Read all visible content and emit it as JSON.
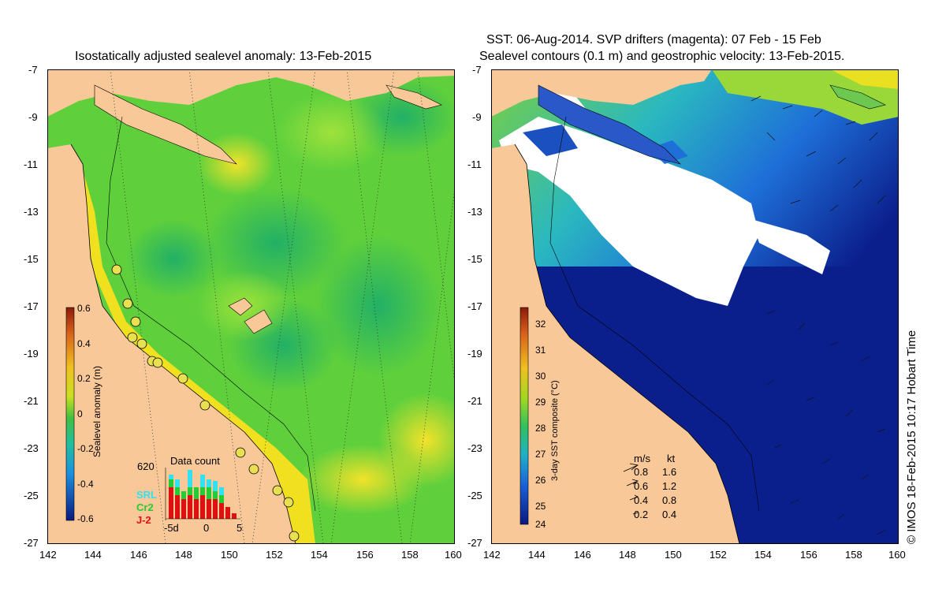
{
  "left_map": {
    "title": "Isostatically adjusted sealevel anomaly: 13-Feb-2015",
    "colorbar_label": "Sealevel anomaly (m)",
    "colorbar_ticks": [
      "0.6",
      "0.4",
      "0.2",
      "0",
      "-0.2",
      "-0.4",
      "-0.6"
    ],
    "data_count": {
      "title": "Data count",
      "max": "620",
      "series": [
        "SRL",
        "Cr2",
        "J-2"
      ],
      "series_colors": [
        "#33e0f0",
        "#22cc33",
        "#dd1111"
      ],
      "xticks": [
        "-5d",
        "0",
        "5"
      ]
    }
  },
  "right_map": {
    "title_line1": "SST: 06-Aug-2014. SVP drifters (magenta): 07 Feb - 15 Feb",
    "title_line2": "Sealevel contours (0.1 m) and geostrophic velocity: 13-Feb-2015.",
    "colorbar_label": "3-day SST composite (°C)",
    "colorbar_ticks": [
      "32",
      "31",
      "30",
      "29",
      "28",
      "27",
      "26",
      "25",
      "24"
    ],
    "velocity_legend": {
      "header_ms": "m/s",
      "header_kt": "kt",
      "rows": [
        {
          "ms": "0.8",
          "kt": "1.6"
        },
        {
          "ms": "0.6",
          "kt": "1.2"
        },
        {
          "ms": "0.4",
          "kt": "0.8"
        },
        {
          "ms": "0.2",
          "kt": "0.4"
        }
      ]
    }
  },
  "axes": {
    "lat_ticks": [
      "-7",
      "-9",
      "-11",
      "-13",
      "-15",
      "-17",
      "-19",
      "-21",
      "-23",
      "-25",
      "-27"
    ],
    "lon_ticks": [
      "142",
      "144",
      "146",
      "148",
      "150",
      "152",
      "154",
      "156",
      "158",
      "160"
    ]
  },
  "credit": "© IMOS 18-Feb-2015 10:17 Hobart Time",
  "colors": {
    "land": "#f9c898",
    "sla_green": "#4fcc3a",
    "sla_yellow": "#f0e020",
    "sst_navy": "#0b1f8c",
    "sst_blue": "#1e6fd8",
    "cloud": "#ffffff"
  }
}
